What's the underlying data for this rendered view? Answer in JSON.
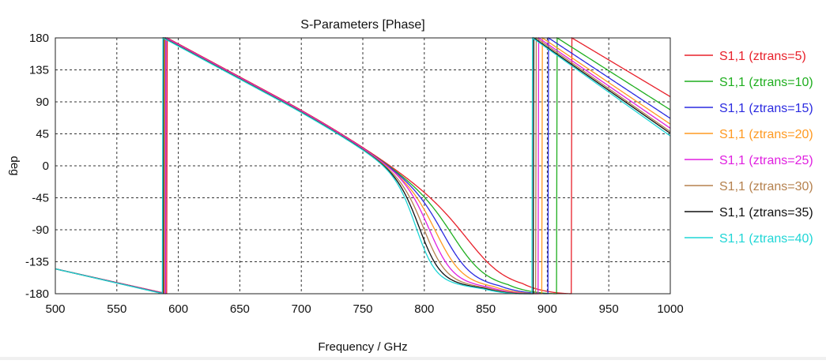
{
  "chart_data": {
    "type": "line",
    "title": "S-Parameters [Phase]",
    "xlabel": "Frequency / GHz",
    "ylabel": "deg",
    "xlim": [
      500,
      1000
    ],
    "ylim": [
      -180,
      180
    ],
    "xticks": [
      500,
      550,
      600,
      650,
      700,
      750,
      800,
      850,
      900,
      950,
      1000
    ],
    "yticks": [
      180,
      135,
      90,
      45,
      0,
      -45,
      -90,
      -135,
      -180
    ],
    "grid": true,
    "legend_position": "right",
    "series": [
      {
        "name": "S1,1 (ztrans=5)",
        "color": "#e8202a",
        "jump1": 591.0,
        "jump2": 920,
        "mid": 846,
        "width": 30,
        "high": 105,
        "slope_tail": 0.47
      },
      {
        "name": "S1,1 (ztrans=10)",
        "color": "#1fae1f",
        "jump1": 590.0,
        "jump2": 908,
        "mid": 830,
        "width": 26,
        "high": 98,
        "slope_tail": 0.5
      },
      {
        "name": "S1,1 (ztrans=15)",
        "color": "#2a2ae0",
        "jump1": 589.5,
        "jump2": 901,
        "mid": 820,
        "width": 23,
        "high": 92,
        "slope_tail": 0.52
      },
      {
        "name": "S1,1 (ztrans=20)",
        "color": "#ff9a22",
        "jump1": 589.0,
        "jump2": 896,
        "mid": 813,
        "width": 21,
        "high": 88,
        "slope_tail": 0.53
      },
      {
        "name": "S1,1 (ztrans=25)",
        "color": "#e01fe0",
        "jump1": 590.0,
        "jump2": 893,
        "mid": 807,
        "width": 19,
        "high": 85,
        "slope_tail": 0.54
      },
      {
        "name": "S1,1 (ztrans=30)",
        "color": "#b5814e",
        "jump1": 588.5,
        "jump2": 891,
        "mid": 802,
        "width": 18,
        "high": 83,
        "slope_tail": 0.55
      },
      {
        "name": "S1,1 (ztrans=35)",
        "color": "#111111",
        "jump1": 588.0,
        "jump2": 889,
        "mid": 798,
        "width": 17,
        "high": 81,
        "slope_tail": 0.55
      },
      {
        "name": "S1,1 (ztrans=40)",
        "color": "#1fd6d6",
        "jump1": 587.5,
        "jump2": 888,
        "mid": 795,
        "width": 16,
        "high": 80,
        "slope_tail": 0.56
      }
    ]
  }
}
